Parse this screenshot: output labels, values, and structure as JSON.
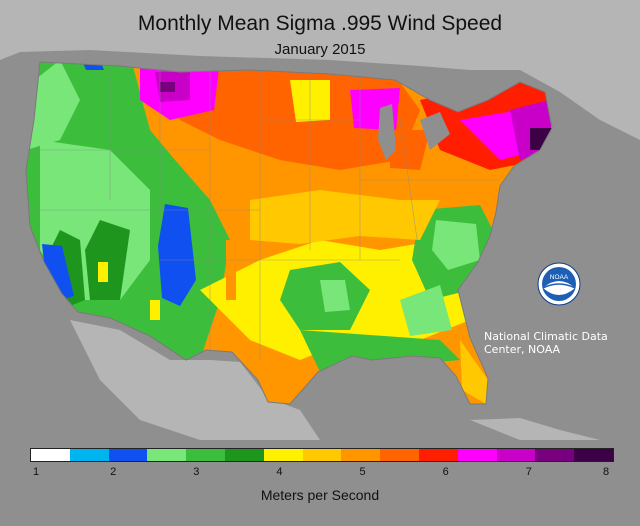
{
  "title": "Monthly Mean Sigma .995 Wind Speed",
  "subtitle": "January 2015",
  "credit": "National Climatic Data Center, NOAA",
  "logo_text": "NOAA",
  "legend": {
    "label": "Meters per Second",
    "ticks": [
      "1",
      "2",
      "3",
      "4",
      "5",
      "6",
      "7",
      "8"
    ],
    "min": 1,
    "max": 8,
    "colors": [
      "#ffffff",
      "#00b4f0",
      "#1050f0",
      "#78e678",
      "#3cbe3c",
      "#1e961e",
      "#fff000",
      "#ffc800",
      "#ff9600",
      "#ff6400",
      "#ff1e00",
      "#ff00ff",
      "#c800c8",
      "#78007e",
      "#3c0046"
    ]
  },
  "colors": {
    "background": "#8f8f8f",
    "land_other": "#b5b5b5",
    "water": "#8f8f8f"
  }
}
